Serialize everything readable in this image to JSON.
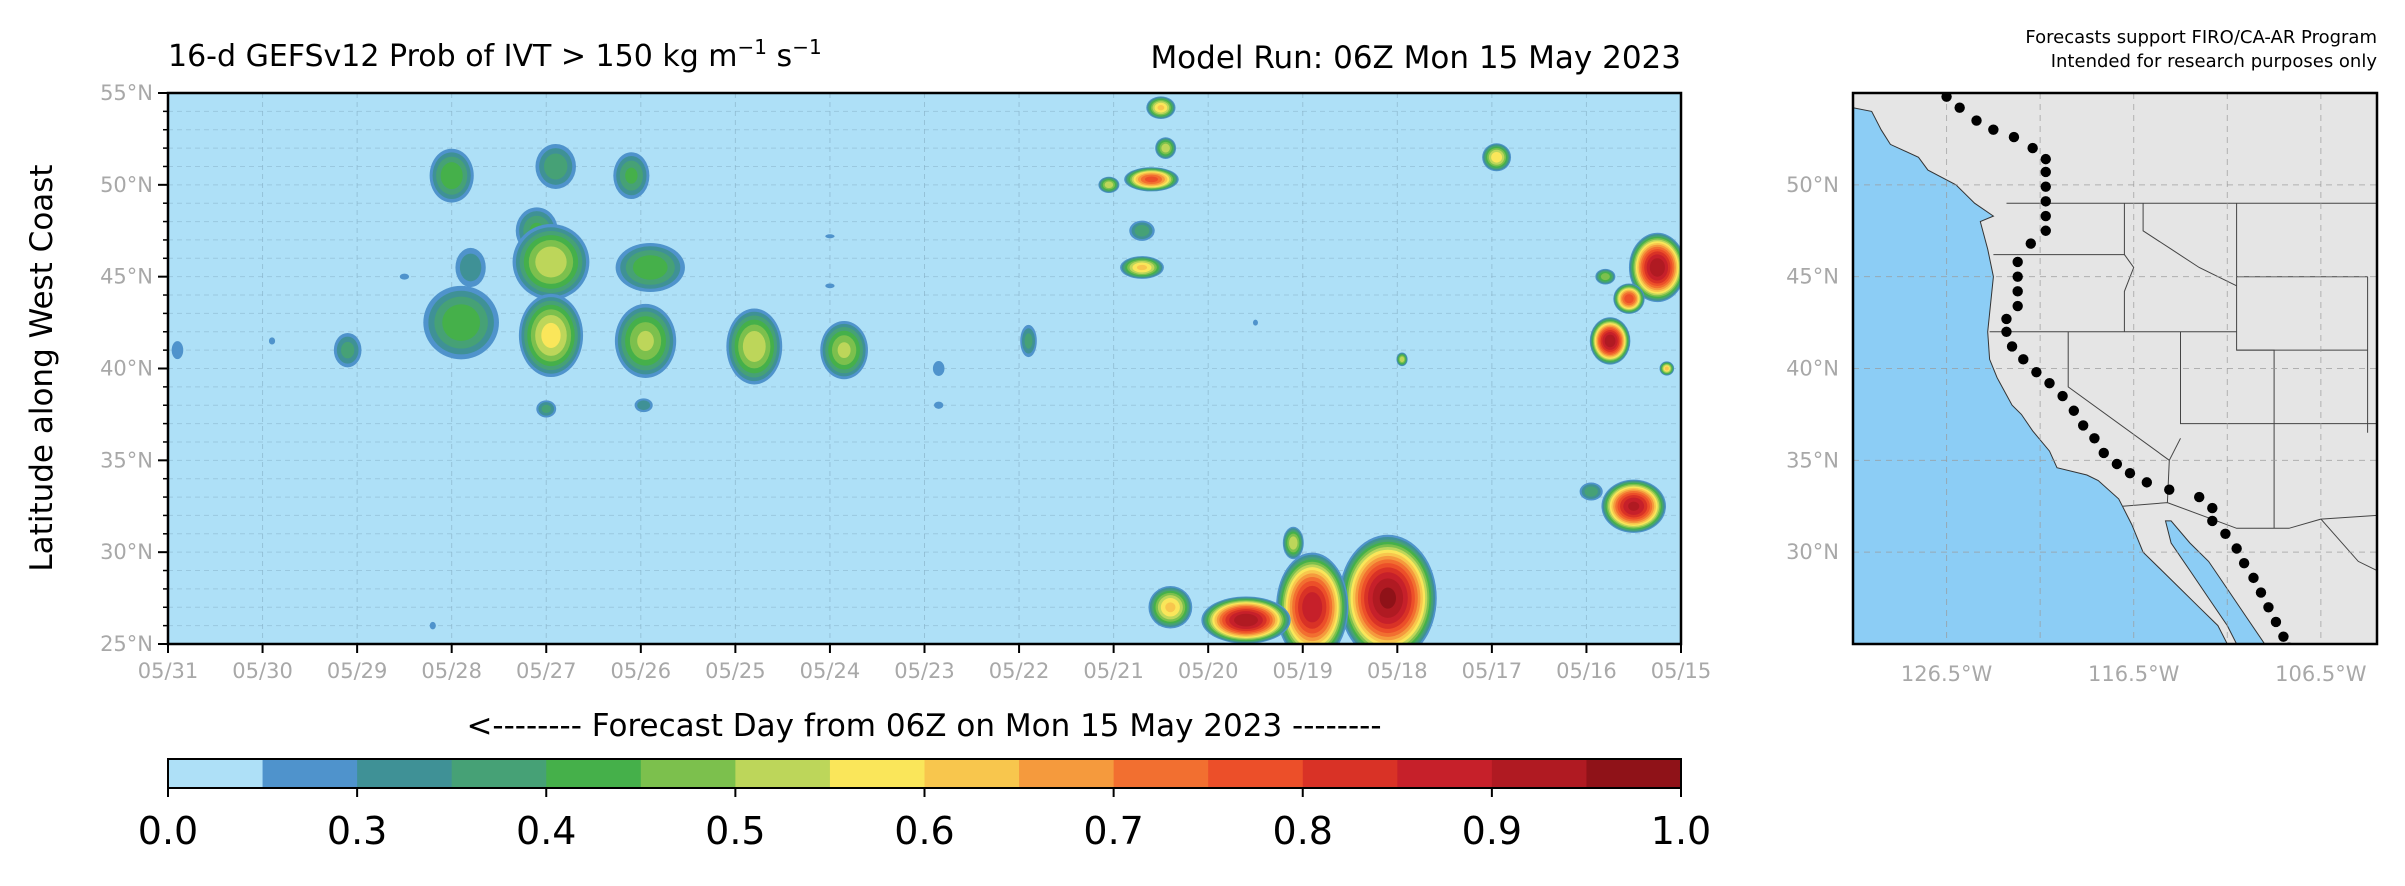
{
  "header": {
    "title_main": "16-d GEFSv12 Prob of IVT > 150 kg m",
    "title_exp1": "−1",
    "title_mid": " s",
    "title_exp2": "−1",
    "model_run": "Model Run: 06Z Mon 15 May 2023",
    "program_line1": "Forecasts support FIRO/CA-AR Program",
    "program_line2": "Intended for research purposes only"
  },
  "chart_data": [
    {
      "type": "heatmap",
      "title": "16-d GEFSv12 Prob of IVT > 150 kg m−1 s−1",
      "subtitle": "Model Run: 06Z Mon 15 May 2023",
      "xlabel": "<-------- Forecast Day from 06Z on Mon 15 May 2023 --------",
      "ylabel": "Latitude along West Coast",
      "x_tick_labels": [
        "05/31",
        "05/30",
        "05/29",
        "05/28",
        "05/27",
        "05/26",
        "05/25",
        "05/24",
        "05/23",
        "05/22",
        "05/21",
        "05/20",
        "05/19",
        "05/18",
        "05/17",
        "05/16",
        "05/15"
      ],
      "x_direction": "reversed (05/31 at left, 05/15 at right)",
      "y_tick_labels": [
        "25°N",
        "30°N",
        "35°N",
        "40°N",
        "45°N",
        "50°N",
        "55°N"
      ],
      "ylim": [
        25,
        55
      ],
      "grid": true,
      "colorbar": {
        "ticks": [
          "0.0",
          "0.3",
          "0.4",
          "0.5",
          "0.6",
          "0.7",
          "0.8",
          "0.9",
          "1.0"
        ],
        "levels": [
          0.0,
          0.25,
          0.3,
          0.35,
          0.4,
          0.45,
          0.5,
          0.55,
          0.6,
          0.65,
          0.7,
          0.75,
          0.8,
          0.85,
          0.9,
          0.95,
          1.0
        ],
        "colors": [
          "#aee0f7",
          "#4f93cc",
          "#3f9196",
          "#46a176",
          "#45b04a",
          "#7cc04d",
          "#bdd65a",
          "#fae65a",
          "#f8c64d",
          "#f59a3d",
          "#f26f30",
          "#ec4f29",
          "#d93226",
          "#c6202a",
          "#b01a22",
          "#8f1218"
        ]
      },
      "features": [
        {
          "day": 28.0,
          "lat": 50.5,
          "r_day": 0.35,
          "r_lat": 2.2,
          "p": 0.45
        },
        {
          "day": 27.8,
          "lat": 45.5,
          "r_day": 0.3,
          "r_lat": 2.0,
          "p": 0.35
        },
        {
          "day": 27.9,
          "lat": 42.5,
          "r_day": 0.6,
          "r_lat": 3.0,
          "p": 0.45
        },
        {
          "day": 27.1,
          "lat": 47.5,
          "r_day": 0.35,
          "r_lat": 2.0,
          "p": 0.42
        },
        {
          "day": 26.95,
          "lat": 45.8,
          "r_day": 0.55,
          "r_lat": 2.8,
          "p": 0.55
        },
        {
          "day": 26.95,
          "lat": 41.8,
          "r_day": 0.45,
          "r_lat": 3.0,
          "p": 0.58
        },
        {
          "day": 26.9,
          "lat": 51.0,
          "r_day": 0.35,
          "r_lat": 2.0,
          "p": 0.4
        },
        {
          "day": 26.1,
          "lat": 50.5,
          "r_day": 0.3,
          "r_lat": 2.0,
          "p": 0.42
        },
        {
          "day": 25.9,
          "lat": 45.5,
          "r_day": 0.55,
          "r_lat": 2.0,
          "p": 0.45
        },
        {
          "day": 25.95,
          "lat": 41.5,
          "r_day": 0.45,
          "r_lat": 2.8,
          "p": 0.52
        },
        {
          "day": 24.8,
          "lat": 41.2,
          "r_day": 0.4,
          "r_lat": 2.8,
          "p": 0.55
        },
        {
          "day": 23.85,
          "lat": 41.0,
          "r_day": 0.35,
          "r_lat": 2.2,
          "p": 0.52
        },
        {
          "day": 29.1,
          "lat": 41.0,
          "r_day": 0.25,
          "r_lat": 1.6,
          "p": 0.38
        },
        {
          "day": 30.9,
          "lat": 41.0,
          "r_day": 0.15,
          "r_lat": 1.2,
          "p": 0.3
        },
        {
          "day": 29.9,
          "lat": 41.5,
          "r_day": 0.1,
          "r_lat": 0.6,
          "p": 0.28
        },
        {
          "day": 27.0,
          "lat": 37.8,
          "r_day": 0.18,
          "r_lat": 0.8,
          "p": 0.38
        },
        {
          "day": 25.97,
          "lat": 38.0,
          "r_day": 0.18,
          "r_lat": 0.7,
          "p": 0.35
        },
        {
          "day": 22.85,
          "lat": 40.0,
          "r_day": 0.15,
          "r_lat": 1.0,
          "p": 0.3
        },
        {
          "day": 22.85,
          "lat": 38.0,
          "r_day": 0.15,
          "r_lat": 0.6,
          "p": 0.28
        },
        {
          "day": 21.9,
          "lat": 41.5,
          "r_day": 0.15,
          "r_lat": 1.5,
          "p": 0.38
        },
        {
          "day": 20.7,
          "lat": 45.5,
          "r_day": 0.3,
          "r_lat": 0.8,
          "p": 0.62
        },
        {
          "day": 20.7,
          "lat": 47.5,
          "r_day": 0.22,
          "r_lat": 0.9,
          "p": 0.4
        },
        {
          "day": 20.6,
          "lat": 50.3,
          "r_day": 0.35,
          "r_lat": 0.8,
          "p": 0.78
        },
        {
          "day": 20.5,
          "lat": 54.2,
          "r_day": 0.2,
          "r_lat": 0.8,
          "p": 0.62
        },
        {
          "day": 20.45,
          "lat": 52.0,
          "r_day": 0.15,
          "r_lat": 0.8,
          "p": 0.55
        },
        {
          "day": 21.05,
          "lat": 50.0,
          "r_day": 0.15,
          "r_lat": 0.6,
          "p": 0.55
        },
        {
          "day": 16.95,
          "lat": 51.5,
          "r_day": 0.2,
          "r_lat": 1.0,
          "p": 0.6
        },
        {
          "day": 15.25,
          "lat": 45.5,
          "r_day": 0.35,
          "r_lat": 2.2,
          "p": 0.95
        },
        {
          "day": 15.55,
          "lat": 43.8,
          "r_day": 0.2,
          "r_lat": 1.0,
          "p": 0.8
        },
        {
          "day": 15.8,
          "lat": 45.0,
          "r_day": 0.15,
          "r_lat": 0.6,
          "p": 0.5
        },
        {
          "day": 15.75,
          "lat": 41.5,
          "r_day": 0.25,
          "r_lat": 1.5,
          "p": 0.95
        },
        {
          "day": 15.15,
          "lat": 40.0,
          "r_day": 0.1,
          "r_lat": 0.5,
          "p": 0.62
        },
        {
          "day": 17.95,
          "lat": 40.5,
          "r_day": 0.08,
          "r_lat": 0.5,
          "p": 0.55
        },
        {
          "day": 15.5,
          "lat": 32.5,
          "r_day": 0.4,
          "r_lat": 1.7,
          "p": 0.92
        },
        {
          "day": 15.95,
          "lat": 33.3,
          "r_day": 0.2,
          "r_lat": 0.8,
          "p": 0.4
        },
        {
          "day": 18.1,
          "lat": 27.5,
          "r_day": 0.6,
          "r_lat": 4.0,
          "p": 0.97
        },
        {
          "day": 18.9,
          "lat": 27.0,
          "r_day": 0.45,
          "r_lat": 3.5,
          "p": 0.9
        },
        {
          "day": 19.6,
          "lat": 26.3,
          "r_day": 0.55,
          "r_lat": 1.5,
          "p": 0.95
        },
        {
          "day": 20.4,
          "lat": 27.0,
          "r_day": 0.3,
          "r_lat": 1.5,
          "p": 0.62
        },
        {
          "day": 19.1,
          "lat": 30.5,
          "r_day": 0.15,
          "r_lat": 1.2,
          "p": 0.55
        },
        {
          "day": 28.2,
          "lat": 26.0,
          "r_day": 0.08,
          "r_lat": 0.5,
          "p": 0.3
        },
        {
          "day": 19.5,
          "lat": 42.5,
          "r_day": 0.08,
          "r_lat": 0.5,
          "p": 0.28
        },
        {
          "day": 24.0,
          "lat": 44.5,
          "r_day": 0.15,
          "r_lat": 0.4,
          "p": 0.28
        },
        {
          "day": 24.0,
          "lat": 47.2,
          "r_day": 0.15,
          "r_lat": 0.3,
          "p": 0.28
        },
        {
          "day": 28.5,
          "lat": 45.0,
          "r_day": 0.15,
          "r_lat": 0.5,
          "p": 0.28
        }
      ]
    },
    {
      "type": "map",
      "x_tick_labels": [
        "126.5°W",
        "116.5°W",
        "106.5°W"
      ],
      "y_tick_labels": [
        "30°N",
        "35°N",
        "40°N",
        "45°N",
        "50°N"
      ],
      "xlim": [
        -131.5,
        -103.5
      ],
      "ylim": [
        25,
        55
      ],
      "grid": true,
      "coastline": [
        [
          -131.5,
          54.2
        ],
        [
          -130.5,
          54.0
        ],
        [
          -130.0,
          53.0
        ],
        [
          -129.5,
          52.2
        ],
        [
          -128.0,
          51.5
        ],
        [
          -127.5,
          50.8
        ],
        [
          -126.0,
          50.0
        ],
        [
          -125.0,
          49.0
        ],
        [
          -124.0,
          48.3
        ],
        [
          -124.7,
          48.0
        ],
        [
          -124.3,
          46.5
        ],
        [
          -124.0,
          45.0
        ],
        [
          -124.2,
          43.0
        ],
        [
          -124.3,
          42.0
        ],
        [
          -124.2,
          40.5
        ],
        [
          -123.8,
          39.5
        ],
        [
          -123.0,
          38.0
        ],
        [
          -122.5,
          37.5
        ],
        [
          -121.9,
          36.6
        ],
        [
          -121.0,
          35.5
        ],
        [
          -120.6,
          34.6
        ],
        [
          -119.0,
          34.2
        ],
        [
          -118.4,
          33.9
        ],
        [
          -117.3,
          32.9
        ],
        [
          -117.1,
          32.5
        ],
        [
          -116.6,
          31.5
        ],
        [
          -116.0,
          30.0
        ],
        [
          -115.0,
          29.0
        ],
        [
          -114.0,
          28.0
        ],
        [
          -113.0,
          27.0
        ],
        [
          -112.0,
          26.0
        ],
        [
          -111.5,
          25.0
        ]
      ],
      "gulf_of_california": [
        [
          -114.8,
          31.7
        ],
        [
          -114.5,
          30.5
        ],
        [
          -113.5,
          29.0
        ],
        [
          -112.5,
          27.5
        ],
        [
          -111.5,
          26.0
        ],
        [
          -111.0,
          25.0
        ],
        [
          -109.5,
          25.0
        ],
        [
          -110.5,
          26.5
        ],
        [
          -111.5,
          28.0
        ],
        [
          -112.5,
          29.5
        ],
        [
          -113.5,
          30.5
        ],
        [
          -114.5,
          31.7
        ]
      ],
      "points": [
        [
          -126.5,
          54.8
        ],
        [
          -125.8,
          54.2
        ],
        [
          -124.9,
          53.5
        ],
        [
          -124.0,
          53.0
        ],
        [
          -122.9,
          52.6
        ],
        [
          -121.9,
          52.0
        ],
        [
          -121.2,
          51.4
        ],
        [
          -121.2,
          50.7
        ],
        [
          -121.2,
          49.9
        ],
        [
          -121.2,
          49.1
        ],
        [
          -121.2,
          48.3
        ],
        [
          -121.2,
          47.5
        ],
        [
          -122.0,
          46.8
        ],
        [
          -122.7,
          45.8
        ],
        [
          -122.7,
          45.0
        ],
        [
          -122.7,
          44.2
        ],
        [
          -122.7,
          43.4
        ],
        [
          -123.3,
          42.7
        ],
        [
          -123.3,
          42.0
        ],
        [
          -123.0,
          41.2
        ],
        [
          -122.4,
          40.5
        ],
        [
          -121.7,
          39.8
        ],
        [
          -121.0,
          39.2
        ],
        [
          -120.3,
          38.5
        ],
        [
          -119.7,
          37.7
        ],
        [
          -119.2,
          36.9
        ],
        [
          -118.6,
          36.2
        ],
        [
          -118.1,
          35.4
        ],
        [
          -117.4,
          34.8
        ],
        [
          -116.7,
          34.3
        ],
        [
          -115.8,
          33.8
        ],
        [
          -114.6,
          33.4
        ],
        [
          -113.0,
          33.0
        ],
        [
          -112.3,
          32.4
        ],
        [
          -112.3,
          31.7
        ],
        [
          -111.6,
          31.0
        ],
        [
          -111.0,
          30.2
        ],
        [
          -110.6,
          29.4
        ],
        [
          -110.1,
          28.6
        ],
        [
          -109.7,
          27.8
        ],
        [
          -109.3,
          27.0
        ],
        [
          -108.9,
          26.2
        ],
        [
          -108.5,
          25.4
        ],
        [
          -108.2,
          24.8
        ]
      ]
    }
  ],
  "layout": {
    "main_ax": [
      168,
      93,
      1681,
      644
    ],
    "map_ax": [
      1853,
      93,
      2377,
      644
    ],
    "colorbar": [
      168,
      759,
      1681,
      788
    ]
  }
}
